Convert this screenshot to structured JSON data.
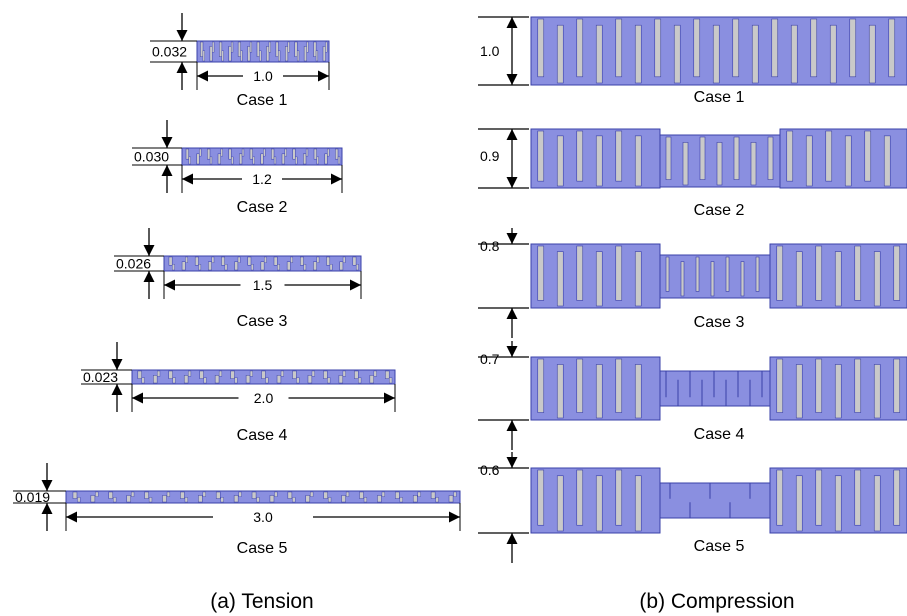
{
  "colors": {
    "fill": "#8a8fe0",
    "edge": "#3a40a8",
    "gap": "#c9c9c9",
    "ink": "#000000"
  },
  "tension": {
    "label": "(a) Tension",
    "cases": [
      {
        "caption": "Case 1",
        "thickness": "0.032",
        "length": "1.0"
      },
      {
        "caption": "Case 2",
        "thickness": "0.030",
        "length": "1.2"
      },
      {
        "caption": "Case 3",
        "thickness": "0.026",
        "length": "1.5"
      },
      {
        "caption": "Case 4",
        "thickness": "0.023",
        "length": "2.0"
      },
      {
        "caption": "Case 5",
        "thickness": "0.019",
        "length": "3.0"
      }
    ]
  },
  "compression": {
    "label": "(b) Compression",
    "cases": [
      {
        "caption": "Case 1",
        "height": "1.0"
      },
      {
        "caption": "Case 2",
        "height": "0.9"
      },
      {
        "caption": "Case 3",
        "height": "0.8"
      },
      {
        "caption": "Case 4",
        "height": "0.7"
      },
      {
        "caption": "Case 5",
        "height": "0.6"
      }
    ]
  }
}
